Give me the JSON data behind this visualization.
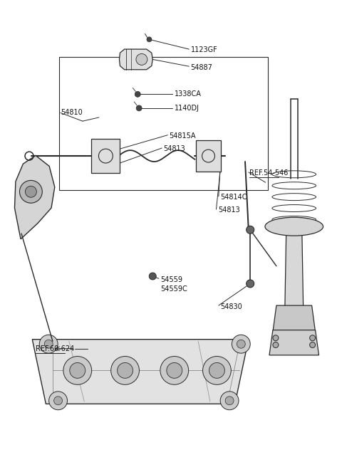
{
  "bg_color": "#ffffff",
  "line_color": "#2a2a2a",
  "labels": [
    {
      "text": "1123GF",
      "xf": 0.558,
      "yf": 0.895,
      "underline": false
    },
    {
      "text": "54887",
      "xf": 0.558,
      "yf": 0.858,
      "underline": false
    },
    {
      "text": "1338CA",
      "xf": 0.51,
      "yf": 0.8,
      "underline": false
    },
    {
      "text": "1140DJ",
      "xf": 0.51,
      "yf": 0.77,
      "underline": false
    },
    {
      "text": "54810",
      "xf": 0.175,
      "yf": 0.76,
      "underline": false
    },
    {
      "text": "54815A",
      "xf": 0.495,
      "yf": 0.71,
      "underline": false
    },
    {
      "text": "54813",
      "xf": 0.478,
      "yf": 0.682,
      "underline": false
    },
    {
      "text": "REF.54-546",
      "xf": 0.73,
      "yf": 0.63,
      "underline": true
    },
    {
      "text": "54814C",
      "xf": 0.645,
      "yf": 0.578,
      "underline": false
    },
    {
      "text": "54813",
      "xf": 0.638,
      "yf": 0.55,
      "underline": false
    },
    {
      "text": "54559",
      "xf": 0.468,
      "yf": 0.4,
      "underline": false
    },
    {
      "text": "54559C",
      "xf": 0.468,
      "yf": 0.38,
      "underline": false
    },
    {
      "text": "54830",
      "xf": 0.645,
      "yf": 0.342,
      "underline": false
    },
    {
      "text": "REF.60-624",
      "xf": 0.102,
      "yf": 0.252,
      "underline": true
    }
  ],
  "fig_width": 4.8,
  "fig_height": 6.56,
  "dpi": 100
}
